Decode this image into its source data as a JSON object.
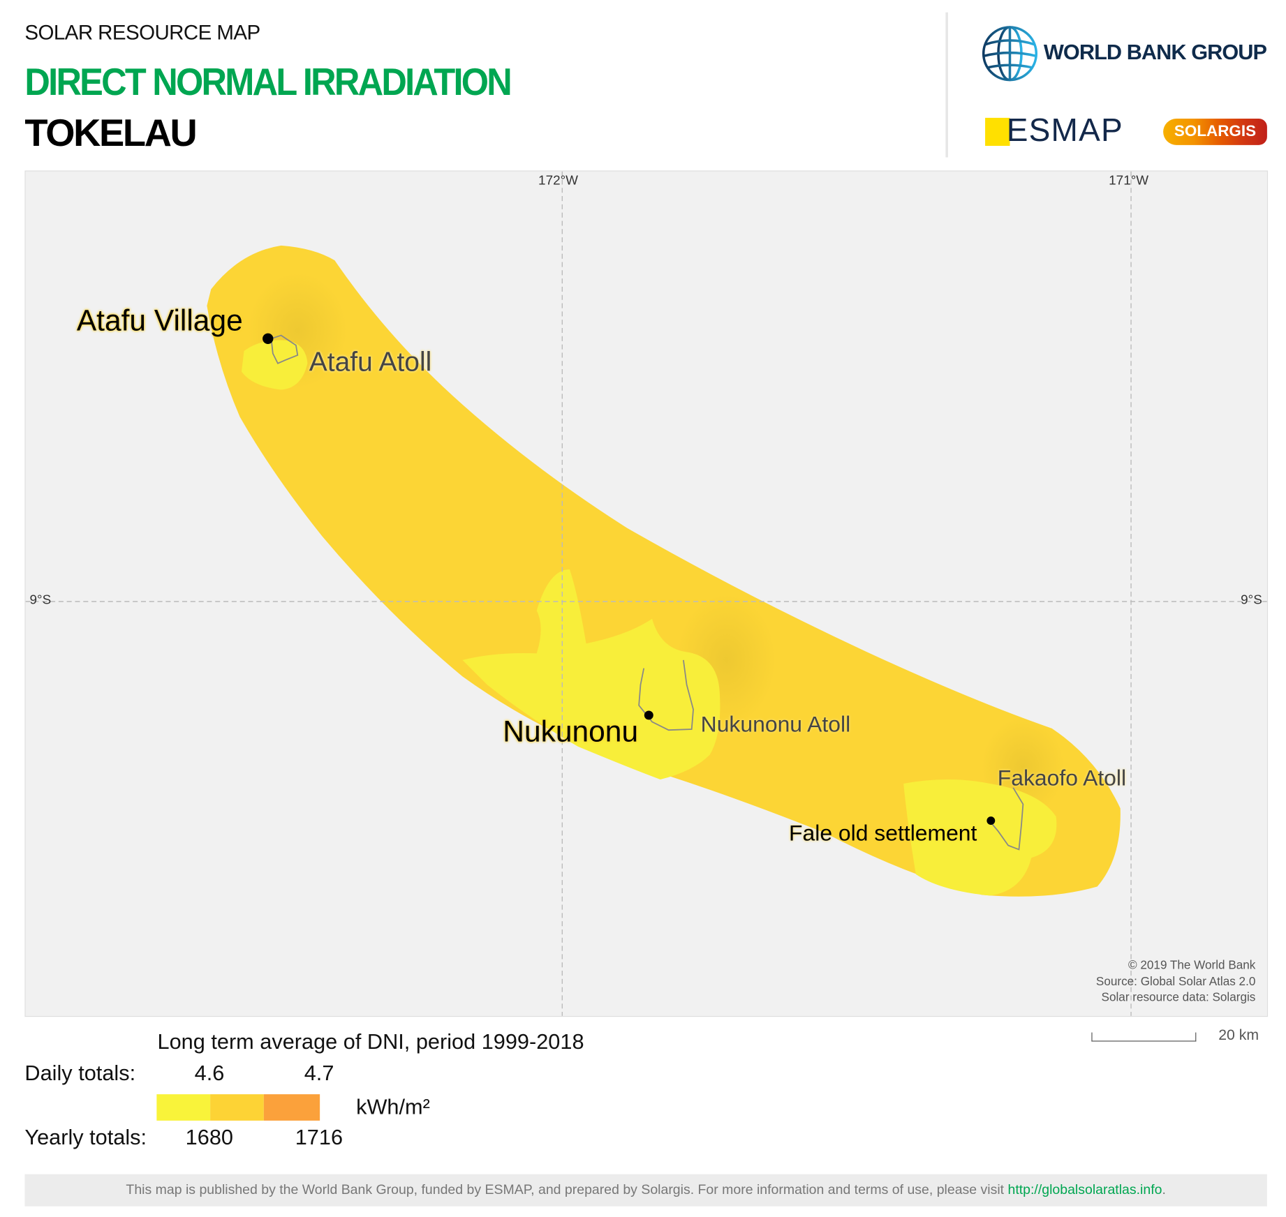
{
  "header": {
    "subtitle": "SOLAR RESOURCE MAP",
    "title": "DIRECT NORMAL IRRADIATION",
    "country": "TOKELAU"
  },
  "logos": {
    "world_bank": "WORLD BANK GROUP",
    "esmap": "ESMAP",
    "solargis": "SOLARGIS"
  },
  "map": {
    "grid_labels": {
      "lon1": "172°W",
      "lon2": "171°W",
      "lat_left": "9°S",
      "lat_right": "9°S"
    },
    "places": {
      "atafu_village": "Atafu Village",
      "atafu_atoll": "Atafu Atoll",
      "nukunonu": "Nukunonu",
      "nukunonu_atoll": "Nukunonu Atoll",
      "fakaofo_atoll": "Fakaofo Atoll",
      "fale": "Fale old settlement"
    },
    "credits": [
      "© 2019 The World Bank",
      "Source: Global Solar Atlas 2.0",
      "Solar resource data: Solargis"
    ],
    "scale_label": "20 km",
    "colors": {
      "background": "#f1f1f1",
      "base": "#fcd535",
      "light": "#f8ee3a"
    }
  },
  "legend": {
    "title": "Long term average of DNI, period 1999-2018",
    "daily_label": "Daily totals:",
    "daily_values": [
      "4.6",
      "4.7"
    ],
    "yearly_label": "Yearly totals:",
    "yearly_values": [
      "1680",
      "1716"
    ],
    "unit": "kWh/m²",
    "colors": [
      "#f9f33a",
      "#fdd335",
      "#fba13b"
    ]
  },
  "footer": {
    "text": "This map is published by the World Bank Group, funded by ESMAP, and prepared by Solargis. For more information and terms of use, please visit ",
    "link": "http://globalsolaratlas.info",
    "end": "."
  }
}
